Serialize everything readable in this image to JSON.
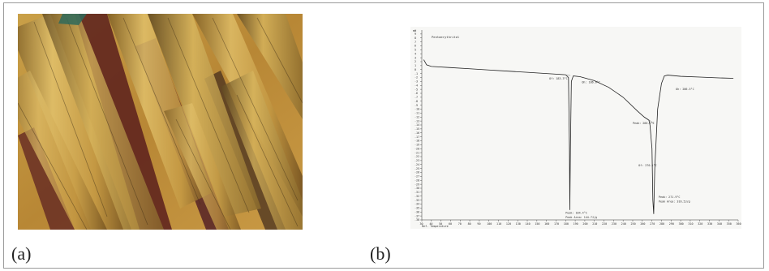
{
  "figure": {
    "panel_a_label": "(a)",
    "panel_b_label": "(b)",
    "photo": {
      "description_icon": "micrograph-image"
    },
    "dsc": {
      "sample_name": "Pentaerythritol",
      "y_axis_unit": "mW",
      "x_axis_label": "Ref. Temperature",
      "annotations": [
        "Of: 183.3°C",
        "Oh: 186.6°C",
        "Peak: 184.4°C",
        "Peak Area: 144.7J/g",
        "Peak: 266.9°C",
        "Oh: 286.5°C",
        "Of: 270.1°C",
        "Peak: 271.9°C",
        "Peak Area: 316.5J/g"
      ]
    }
  },
  "chart_data": {
    "type": "line",
    "title": "",
    "xlabel": "Ref. Temperature",
    "ylabel": "mW",
    "xlim": [
      30,
      360
    ],
    "ylim": [
      -38,
      10
    ],
    "x_ticks": [
      30,
      40,
      50,
      60,
      70,
      80,
      90,
      100,
      110,
      120,
      130,
      140,
      150,
      160,
      170,
      180,
      190,
      200,
      210,
      220,
      230,
      240,
      250,
      260,
      270,
      280,
      290,
      300,
      310,
      320,
      330,
      340,
      350,
      360
    ],
    "y_ticks": [
      9,
      8,
      7,
      6,
      5,
      4,
      3,
      2,
      1,
      0,
      -1,
      -2,
      -3,
      -4,
      -5,
      -6,
      -7,
      -8,
      -9,
      -10,
      -11,
      -12,
      -13,
      -14,
      -15,
      -16,
      -17,
      -18,
      -19,
      -20,
      -21,
      -22,
      -23,
      -24,
      -25,
      -26,
      -27,
      -28,
      -29,
      -30,
      -31,
      -32,
      -33,
      -34,
      -35,
      -36,
      -37,
      -38
    ],
    "series": [
      {
        "x": [
          32,
          35,
          40,
          60,
          80,
          100,
          120,
          140,
          160,
          180,
          183,
          184,
          184.4,
          185,
          186,
          188,
          195,
          210,
          225,
          240,
          255,
          262,
          266.9,
          268,
          270.1,
          271,
          271.9,
          273,
          276,
          280,
          283,
          286.5,
          300,
          320,
          340,
          355
        ],
        "y": [
          2.5,
          1.2,
          0.8,
          0.5,
          0.2,
          -0.1,
          -0.4,
          -0.7,
          -1.0,
          -1.3,
          -2.0,
          -20.0,
          -35.5,
          -20.0,
          -3.0,
          -1.6,
          -1.8,
          -2.8,
          -4.5,
          -7.0,
          -10.5,
          -12.0,
          -12.8,
          -14.0,
          -20.0,
          -33.0,
          -36.5,
          -25.0,
          -10.0,
          -3.5,
          -1.6,
          -1.4,
          -1.7,
          -1.9,
          -2.1,
          -2.2
        ]
      }
    ],
    "annotations": [
      "Of: 183.3°C",
      "Oh: 186.6°C",
      "Peak: 184.4°C",
      "Peak Area: 144.7J/g",
      "Peak: 266.9°C",
      "Oh: 286.5°C",
      "Of: 270.1°C",
      "Peak: 271.9°C",
      "Peak Area: 316.5J/g"
    ],
    "grid": false
  }
}
